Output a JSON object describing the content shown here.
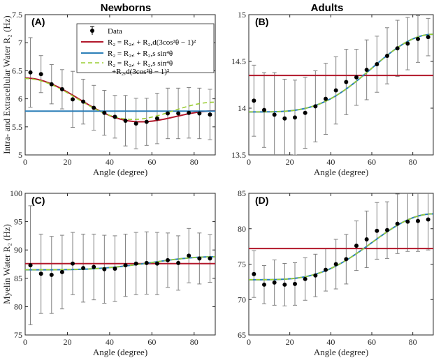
{
  "figure": {
    "column_titles": [
      "Newborns",
      "Adults"
    ]
  },
  "legend": {
    "entries": [
      {
        "label": "Data",
        "kind": "marker",
        "color": "#000000"
      },
      {
        "label": "R₂ = R₂,ᵢ + R₂,d(3cos²θ − 1)²",
        "kind": "line",
        "color": "#b2182b"
      },
      {
        "label": "R₂ = R₂,ᵢ + R₂,s sin⁴θ",
        "kind": "line",
        "color": "#2c7fb8"
      },
      {
        "label": "R₂ = R₂,ᵢ + R₂,s sin⁴θ",
        "label2": "+R₂,d(3cos²θ − 1)²",
        "kind": "dashed",
        "color": "#9acd32"
      }
    ]
  },
  "chart_data": [
    {
      "panel": "(A)",
      "type": "scatter",
      "xlabel": "Angle (degree)",
      "ylabel": "Intra- and Extracellular Water R₂ (Hz)",
      "xlim": [
        0,
        90
      ],
      "ylim": [
        5,
        7.5
      ],
      "xticks": [
        0,
        20,
        40,
        60,
        80
      ],
      "yticks": [
        5,
        5.5,
        6,
        6.5,
        7,
        7.5
      ],
      "ytick_labels": [
        "5",
        "5.5",
        "6",
        "6.5",
        "7",
        "7.5"
      ],
      "x": [
        2.5,
        7.5,
        12.5,
        17.5,
        22.5,
        27.5,
        32.5,
        37.5,
        42.5,
        47.5,
        52.5,
        57.5,
        62.5,
        67.5,
        72.5,
        77.5,
        82.5,
        87.5
      ],
      "y": [
        6.47,
        6.44,
        6.26,
        6.17,
        5.99,
        5.95,
        5.84,
        5.75,
        5.68,
        5.61,
        5.56,
        5.59,
        5.65,
        5.74,
        5.74,
        5.75,
        5.74,
        5.72
      ],
      "yerr": [
        0.62,
        0.33,
        0.35,
        0.35,
        0.5,
        0.4,
        0.4,
        0.4,
        0.38,
        0.45,
        0.45,
        0.42,
        0.45,
        0.45,
        0.45,
        0.45,
        0.45,
        0.45
      ],
      "series": [
        {
          "model": "dipolar",
          "color": "#b2182b",
          "Ri": 5.59,
          "Rd": 0.195
        },
        {
          "model": "constant",
          "color": "#2c7fb8",
          "value": 5.78
        },
        {
          "model": "combined",
          "color": "#9acd32",
          "Ri": 5.56,
          "Rs": 0.18,
          "Rd": 0.2
        }
      ]
    },
    {
      "panel": "(B)",
      "type": "scatter",
      "xlabel": "Angle (degree)",
      "ylabel": "",
      "xlim": [
        0,
        90
      ],
      "ylim": [
        13.5,
        15
      ],
      "xticks": [
        0,
        20,
        40,
        60,
        80
      ],
      "yticks": [
        13.5,
        14,
        14.5,
        15
      ],
      "ytick_labels": [
        "13.5",
        "14",
        "14.5",
        "15"
      ],
      "x": [
        2.5,
        7.5,
        12.5,
        17.5,
        22.5,
        27.5,
        32.5,
        37.5,
        42.5,
        47.5,
        52.5,
        57.5,
        62.5,
        67.5,
        72.5,
        77.5,
        82.5,
        87.5
      ],
      "y": [
        14.08,
        13.98,
        13.93,
        13.89,
        13.9,
        13.95,
        14.02,
        14.1,
        14.19,
        14.28,
        14.33,
        14.41,
        14.47,
        14.56,
        14.64,
        14.69,
        14.74,
        14.76
      ],
      "yerr": [
        0.38,
        0.4,
        0.45,
        0.42,
        0.4,
        0.38,
        0.38,
        0.38,
        0.36,
        0.35,
        0.3,
        0.32,
        0.3,
        0.3,
        0.3,
        0.28,
        0.25,
        0.2
      ],
      "series": [
        {
          "model": "constant_red",
          "color": "#b2182b",
          "value": 14.35
        },
        {
          "model": "sin4",
          "color": "#2c7fb8",
          "Ri": 13.96,
          "Rs": 0.83
        },
        {
          "model": "sin4_dashed",
          "color": "#9acd32",
          "Ri": 13.96,
          "Rs": 0.83
        }
      ]
    },
    {
      "panel": "(C)",
      "type": "scatter",
      "xlabel": "Angle (degree)",
      "ylabel": "Myelin Water R₂ (Hz)",
      "xlim": [
        0,
        90
      ],
      "ylim": [
        75,
        100
      ],
      "xticks": [
        0,
        20,
        40,
        60,
        80
      ],
      "yticks": [
        75,
        80,
        85,
        90,
        95,
        100
      ],
      "ytick_labels": [
        "75",
        "80",
        "85",
        "90",
        "95",
        "100"
      ],
      "x": [
        2.5,
        7.5,
        12.5,
        17.5,
        22.5,
        27.5,
        32.5,
        37.5,
        42.5,
        47.5,
        52.5,
        57.5,
        62.5,
        67.5,
        72.5,
        77.5,
        82.5,
        87.5
      ],
      "y": [
        87.3,
        85.8,
        85.6,
        86.1,
        87.6,
        86.8,
        87.0,
        86.6,
        86.7,
        87.3,
        87.6,
        87.7,
        87.6,
        88.2,
        87.7,
        89.0,
        88.5,
        88.5
      ],
      "yerr": [
        10.5,
        7.0,
        6.8,
        6.5,
        5.5,
        6.0,
        5.8,
        6.0,
        5.8,
        5.5,
        5.5,
        5.5,
        5.5,
        4.8,
        4.8,
        4.8,
        4.5,
        4.2
      ],
      "series": [
        {
          "model": "constant_red",
          "color": "#b2182b",
          "value": 87.6
        },
        {
          "model": "sin4",
          "color": "#2c7fb8",
          "Ri": 86.5,
          "Rs": 2.3
        },
        {
          "model": "sin4_dashed",
          "color": "#9acd32",
          "Ri": 86.5,
          "Rs": 2.3
        }
      ]
    },
    {
      "panel": "(D)",
      "type": "scatter",
      "xlabel": "Angle (degree)",
      "ylabel": "",
      "xlim": [
        0,
        90
      ],
      "ylim": [
        65,
        85
      ],
      "xticks": [
        0,
        20,
        40,
        60,
        80
      ],
      "yticks": [
        65,
        70,
        75,
        80,
        85
      ],
      "ytick_labels": [
        "65",
        "70",
        "75",
        "80",
        "85"
      ],
      "x": [
        2.5,
        7.5,
        12.5,
        17.5,
        22.5,
        27.5,
        32.5,
        37.5,
        42.5,
        47.5,
        52.5,
        57.5,
        62.5,
        67.5,
        72.5,
        77.5,
        82.5,
        87.5
      ],
      "y": [
        73.6,
        72.1,
        72.4,
        72.1,
        72.2,
        72.9,
        73.4,
        74.2,
        75.0,
        75.7,
        77.6,
        78.5,
        79.7,
        79.8,
        80.7,
        81.0,
        81.1,
        81.3
      ],
      "yerr": [
        3.3,
        2.7,
        3.2,
        3.0,
        3.0,
        3.0,
        3.0,
        3.0,
        3.5,
        3.5,
        3.5,
        4.0,
        4.0,
        4.0,
        4.2,
        4.2,
        4.3,
        4.3
      ],
      "series": [
        {
          "model": "constant_red",
          "color": "#b2182b",
          "value": 77.2
        },
        {
          "model": "sin4",
          "color": "#2c7fb8",
          "Ri": 72.8,
          "Rs": 9.3
        },
        {
          "model": "sin4_dashed",
          "color": "#9acd32",
          "Ri": 72.8,
          "Rs": 9.3
        }
      ]
    }
  ]
}
